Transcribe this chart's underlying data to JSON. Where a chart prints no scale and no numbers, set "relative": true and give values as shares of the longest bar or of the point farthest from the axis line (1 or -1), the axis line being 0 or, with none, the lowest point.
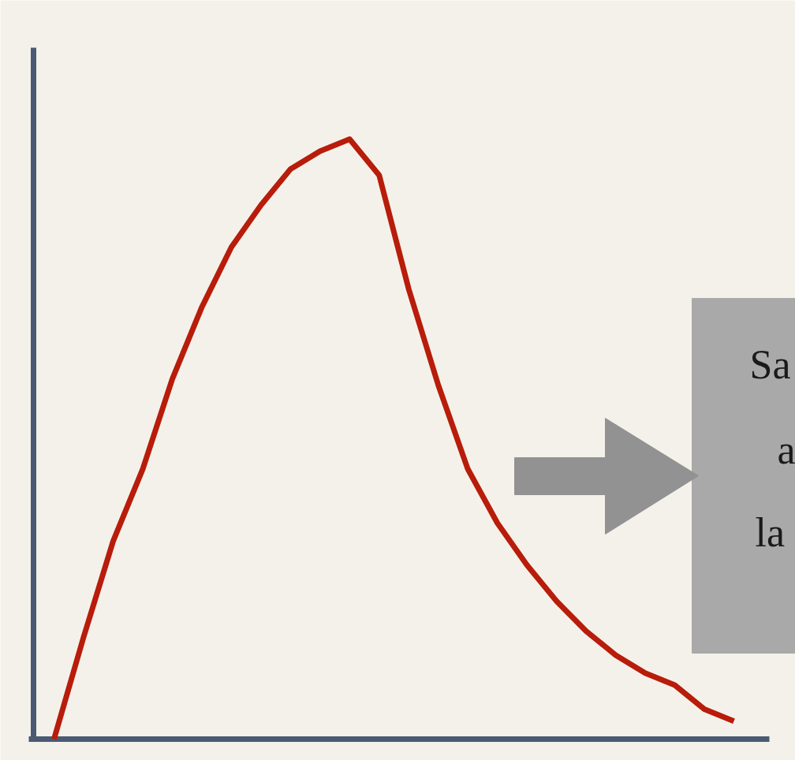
{
  "chart_data": {
    "type": "line",
    "relative": true,
    "categories": [
      null,
      null,
      null,
      null,
      null,
      null,
      null,
      null,
      null,
      null,
      null,
      null,
      null,
      null,
      null,
      null,
      null,
      null,
      null,
      null,
      null,
      null,
      null,
      null
    ],
    "series": [
      {
        "color": "#b81c0a",
        "values": [
          0,
          0.17,
          0.33,
          0.45,
          0.6,
          0.72,
          0.82,
          0.89,
          0.95,
          0.98,
          1,
          0.94,
          0.75,
          0.59,
          0.45,
          0.36,
          0.29,
          0.23,
          0.18,
          0.14,
          0.11,
          0.09,
          0.05,
          0.03
        ]
      }
    ],
    "annotations": [
      "Sa",
      "a",
      "la"
    ]
  }
}
